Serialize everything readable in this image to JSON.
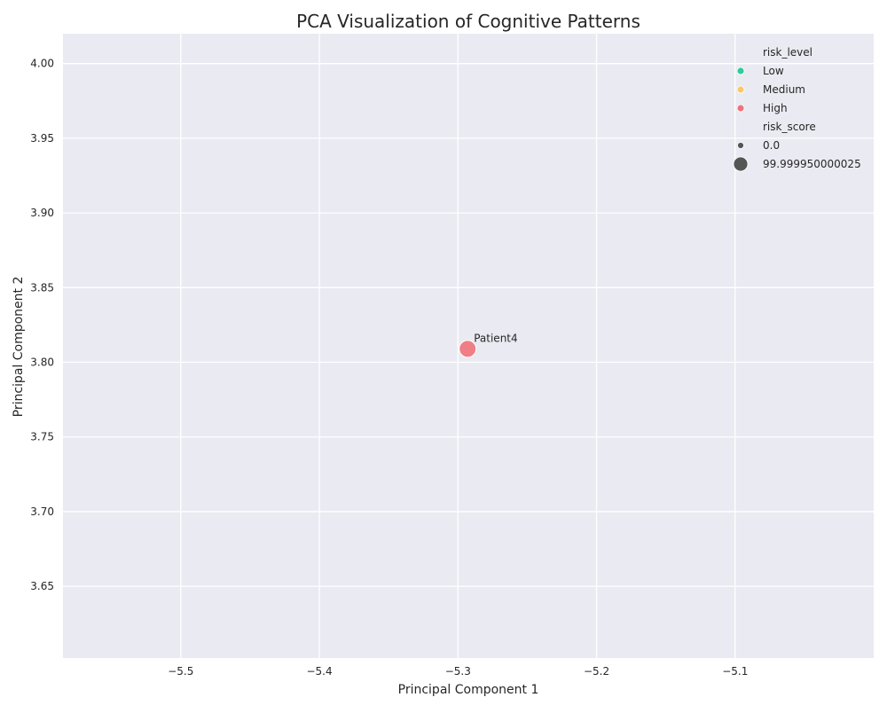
{
  "chart_data": {
    "type": "scatter",
    "title": "PCA Visualization of Cognitive Patterns",
    "xlabel": "Principal Component 1",
    "ylabel": "Principal Component 2",
    "xlim": [
      -5.585,
      -5.0
    ],
    "ylim": [
      3.602,
      4.02
    ],
    "xticks": [
      -5.5,
      -5.4,
      -5.3,
      -5.2,
      -5.1
    ],
    "xtick_labels": [
      "−5.5",
      "−5.4",
      "−5.3",
      "−5.2",
      "−5.1"
    ],
    "yticks": [
      3.65,
      3.7,
      3.75,
      3.8,
      3.85,
      3.9,
      3.95,
      4.0
    ],
    "ytick_labels": [
      "3.65",
      "3.70",
      "3.75",
      "3.80",
      "3.85",
      "3.90",
      "3.95",
      "4.00"
    ],
    "grid": true,
    "background": "#eaeaf2",
    "points": [
      {
        "label": "Patient4",
        "x": -5.293,
        "y": 3.809,
        "risk_level": "High",
        "risk_score": 99.999950000025
      }
    ],
    "legend": {
      "placement": "top-right",
      "hue_title": "risk_level",
      "hue_entries": [
        {
          "label": "Low",
          "color": "#2ecc9a"
        },
        {
          "label": "Medium",
          "color": "#f7c96b"
        },
        {
          "label": "High",
          "color": "#f0727a"
        }
      ],
      "size_title": "risk_score",
      "size_entries": [
        {
          "label": "0.0",
          "size": "small"
        },
        {
          "label": "99.999950000025",
          "size": "large"
        }
      ],
      "size_marker_color": "#555555"
    },
    "colors": {
      "point_high": "#f0727a",
      "grid": "#ffffff"
    }
  }
}
